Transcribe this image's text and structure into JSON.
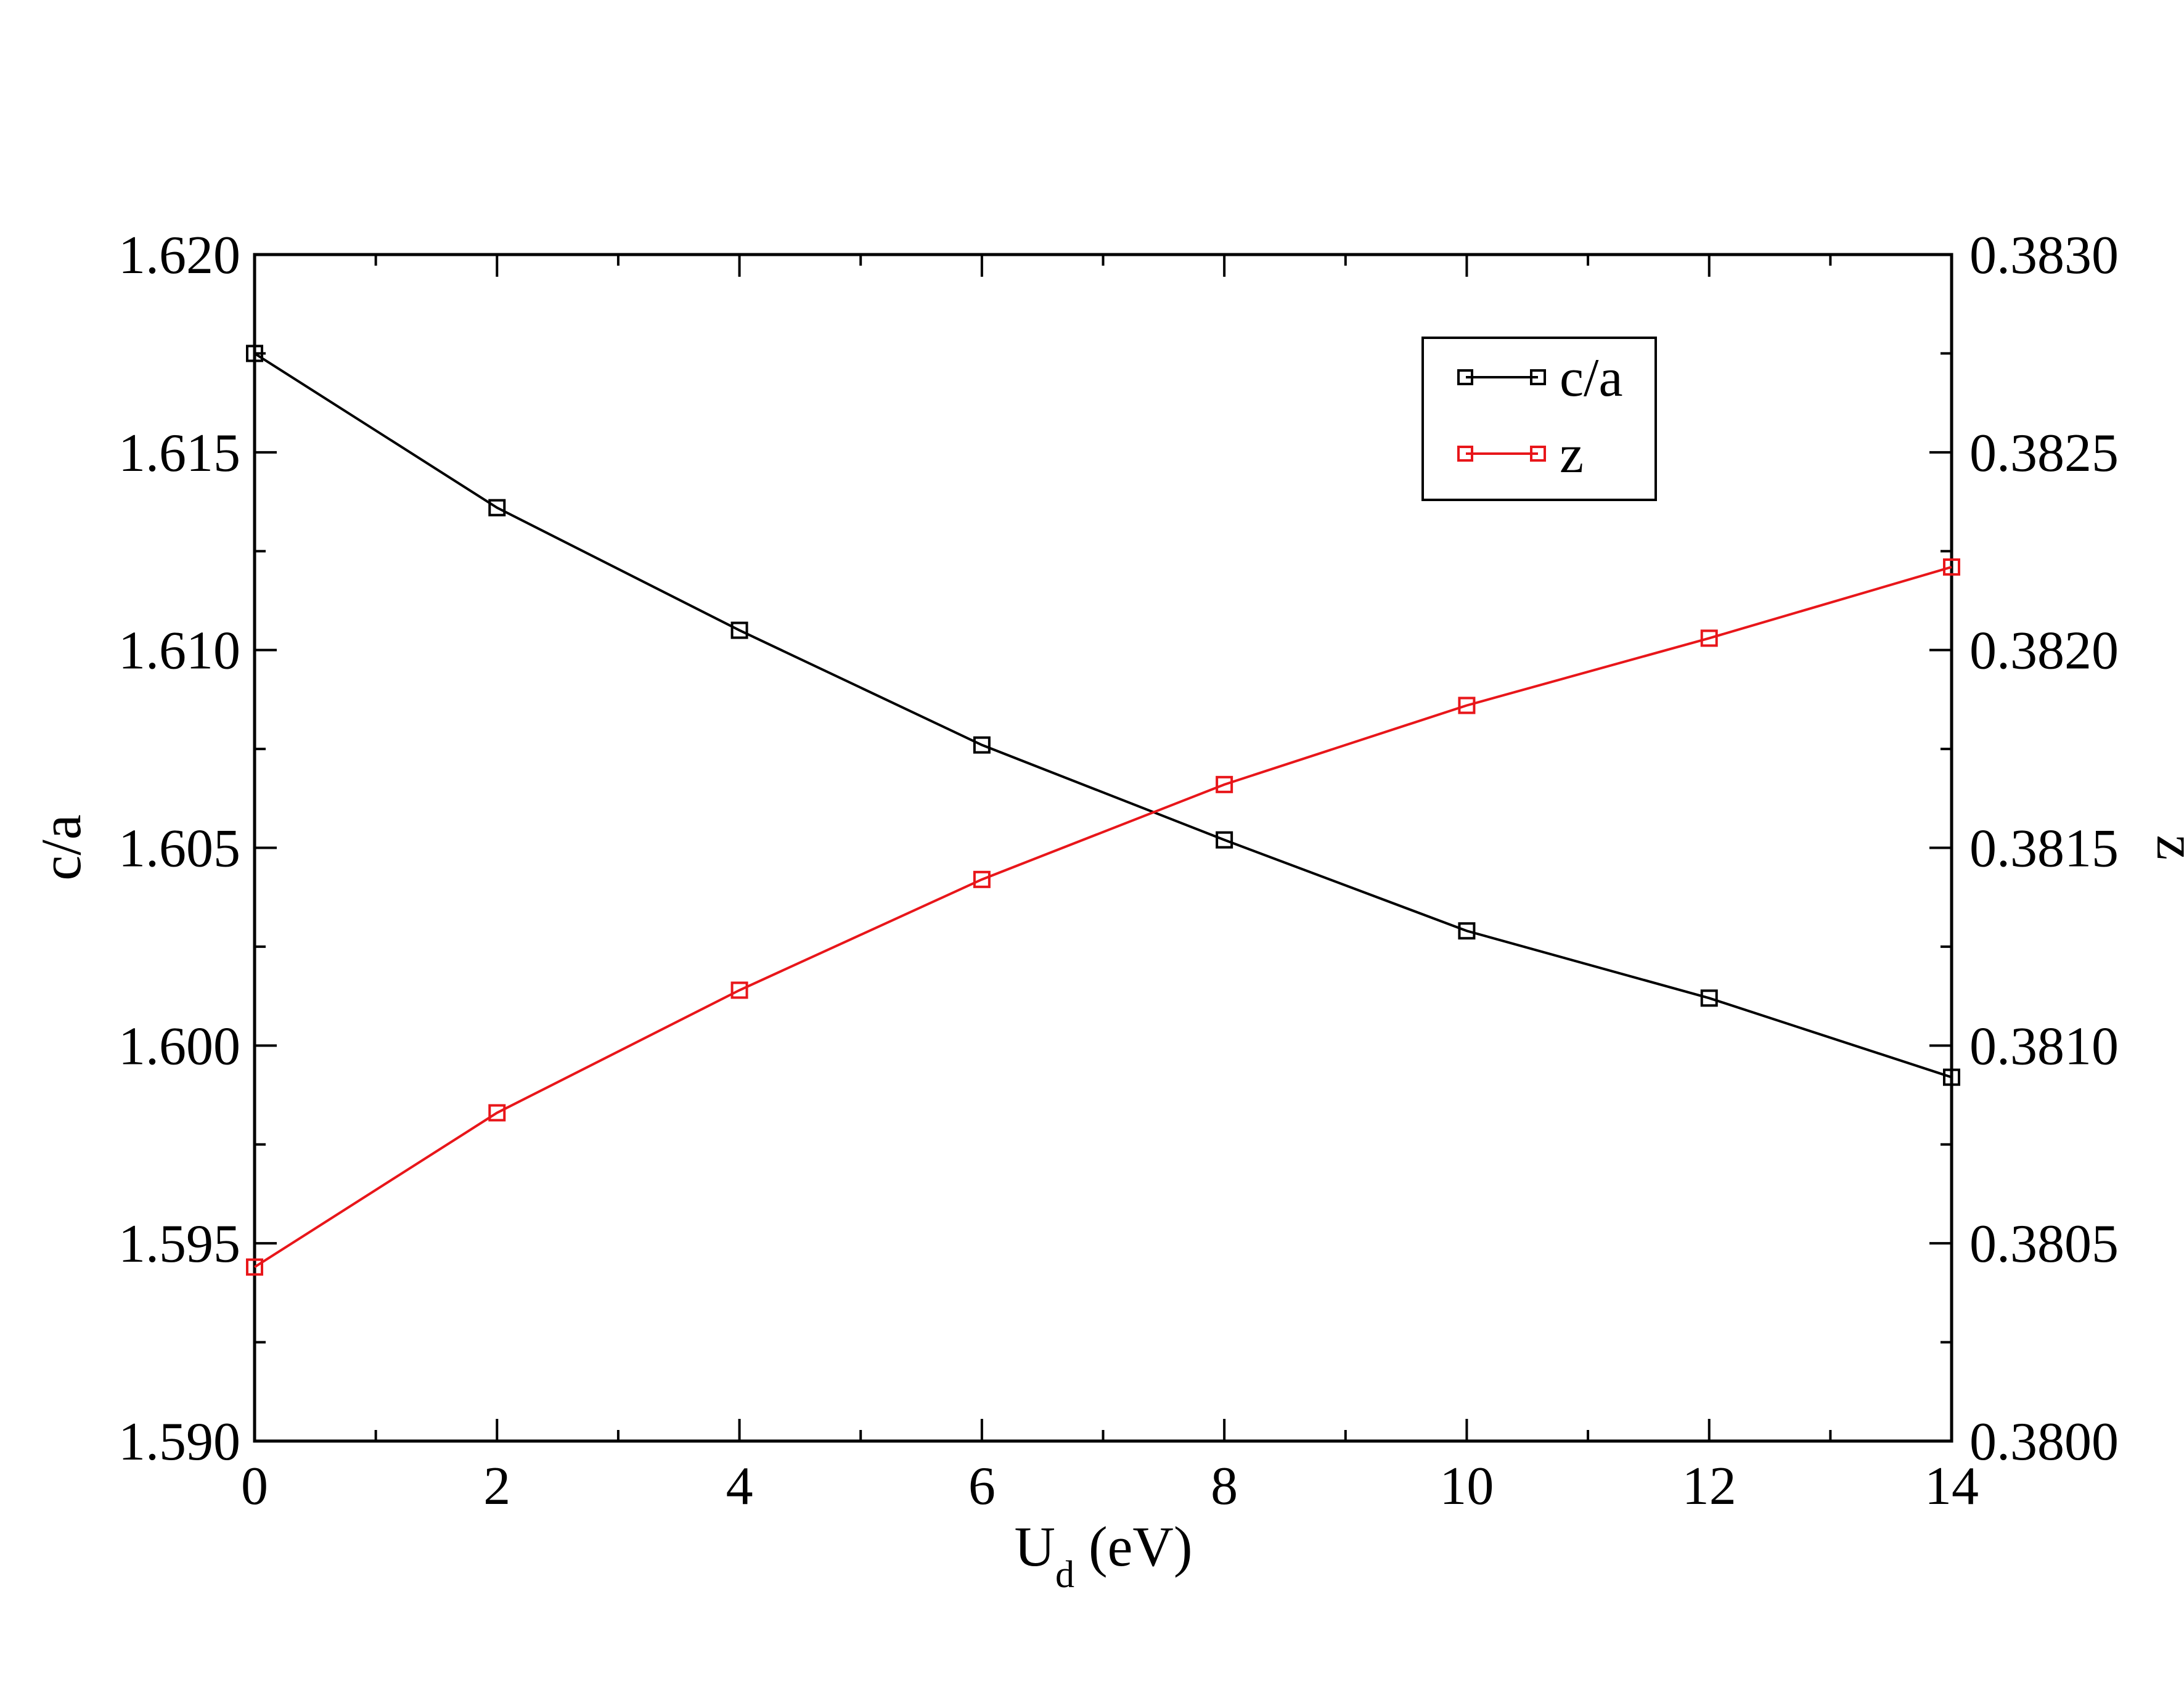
{
  "chart_data": {
    "type": "line",
    "x": [
      0,
      2,
      4,
      6,
      8,
      10,
      12,
      14
    ],
    "xlim": [
      0,
      14
    ],
    "x_ticks": [
      "0",
      "2",
      "4",
      "6",
      "8",
      "10",
      "12",
      "14"
    ],
    "x_minor_step": 1,
    "xlabel": {
      "main": "U",
      "sub": "d",
      "rest": " (eV)"
    },
    "y_left": {
      "label": "c/a",
      "lim": [
        1.59,
        1.62
      ],
      "ticks": [
        "1.620",
        "1.615",
        "1.610",
        "1.605",
        "1.600",
        "1.595",
        "1.590"
      ],
      "tick_values": [
        1.62,
        1.615,
        1.61,
        1.605,
        1.6,
        1.595,
        1.59
      ],
      "minor_step": 0.0025
    },
    "y_right": {
      "label": "z",
      "lim": [
        0.38,
        0.383
      ],
      "ticks": [
        "0.3830",
        "0.3825",
        "0.3820",
        "0.3815",
        "0.3810",
        "0.3805",
        "0.3800"
      ],
      "tick_values": [
        0.383,
        0.3825,
        0.382,
        0.3815,
        0.381,
        0.3805,
        0.38
      ],
      "minor_step": 0.00025
    },
    "series": [
      {
        "name": "c/a",
        "axis": "left",
        "color": "#000000",
        "marker": "square-open",
        "values": [
          1.6175,
          1.6136,
          1.6105,
          1.6076,
          1.6052,
          1.6029,
          1.6012,
          1.5992
        ]
      },
      {
        "name": "z",
        "axis": "right",
        "color": "#e8161a",
        "marker": "square-open",
        "values": [
          0.38044,
          0.38083,
          0.38114,
          0.38142,
          0.38166,
          0.38186,
          0.38203,
          0.38221
        ]
      }
    ],
    "legend": {
      "placement": "top-right",
      "entries": [
        "c/a",
        "z"
      ]
    },
    "grid": false
  }
}
